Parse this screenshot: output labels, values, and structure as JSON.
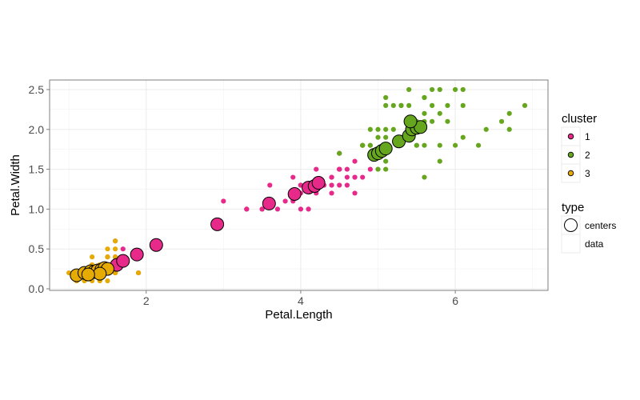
{
  "chart_data": {
    "type": "scatter",
    "xlabel": "Petal.Length",
    "ylabel": "Petal.Width",
    "xlim": [
      0.75,
      7.2
    ],
    "ylim": [
      -0.02,
      2.62
    ],
    "x_ticks": [
      2,
      4,
      6
    ],
    "y_ticks": [
      0.0,
      0.5,
      1.0,
      1.5,
      2.0,
      2.5
    ],
    "x_tick_labels": [
      "2",
      "4",
      "6"
    ],
    "y_tick_labels": [
      "0.0",
      "0.5",
      "1.0",
      "1.5",
      "2.0",
      "2.5"
    ],
    "grid": true,
    "legend": {
      "placement": "right",
      "cluster": {
        "title": "cluster",
        "entries": [
          "1",
          "2",
          "3"
        ]
      },
      "type": {
        "title": "type",
        "entries": [
          "centers",
          "data"
        ]
      }
    },
    "series": [
      {
        "name": "1",
        "color": "#e7298a",
        "data": [
          [
            4.7,
            1.4
          ],
          [
            4.5,
            1.5
          ],
          [
            4.0,
            1.3
          ],
          [
            4.6,
            1.5
          ],
          [
            4.5,
            1.3
          ],
          [
            4.7,
            1.6
          ],
          [
            3.3,
            1.0
          ],
          [
            4.6,
            1.3
          ],
          [
            3.9,
            1.4
          ],
          [
            3.5,
            1.0
          ],
          [
            4.2,
            1.5
          ],
          [
            4.0,
            1.0
          ],
          [
            4.7,
            1.4
          ],
          [
            3.6,
            1.3
          ],
          [
            4.4,
            1.4
          ],
          [
            4.5,
            1.5
          ],
          [
            4.1,
            1.0
          ],
          [
            4.5,
            1.5
          ],
          [
            3.9,
            1.1
          ],
          [
            4.0,
            1.3
          ],
          [
            4.7,
            1.2
          ],
          [
            4.3,
            1.3
          ],
          [
            4.4,
            1.4
          ],
          [
            4.8,
            1.4
          ],
          [
            3.5,
            1.0
          ],
          [
            3.8,
            1.1
          ],
          [
            3.7,
            1.0
          ],
          [
            3.9,
            1.2
          ],
          [
            4.5,
            1.5
          ],
          [
            4.4,
            1.3
          ],
          [
            4.1,
            1.3
          ],
          [
            4.0,
            1.3
          ],
          [
            4.4,
            1.2
          ],
          [
            4.6,
            1.4
          ],
          [
            4.0,
            1.2
          ],
          [
            3.3,
            1.0
          ],
          [
            4.2,
            1.3
          ],
          [
            4.2,
            1.2
          ],
          [
            4.2,
            1.3
          ],
          [
            4.3,
            1.3
          ],
          [
            3.0,
            1.1
          ],
          [
            4.1,
            1.3
          ],
          [
            4.5,
            1.7
          ],
          [
            1.7,
            0.4
          ],
          [
            1.5,
            0.4
          ],
          [
            1.7,
            0.5
          ],
          [
            1.9,
            0.4
          ],
          [
            1.6,
            0.6
          ],
          [
            1.9,
            0.2
          ],
          [
            1.6,
            0.4
          ],
          [
            4.8,
            1.8
          ],
          [
            4.9,
            1.5
          ]
        ],
        "centers": [
          [
            1.62,
            0.3
          ],
          [
            1.7,
            0.35
          ],
          [
            1.88,
            0.43
          ],
          [
            2.13,
            0.55
          ],
          [
            2.92,
            0.81
          ],
          [
            3.59,
            1.07
          ],
          [
            3.92,
            1.19
          ],
          [
            4.1,
            1.27
          ],
          [
            4.18,
            1.29
          ],
          [
            4.23,
            1.33
          ]
        ]
      },
      {
        "name": "2",
        "color": "#66a61e",
        "data": [
          [
            6.0,
            2.5
          ],
          [
            5.1,
            1.9
          ],
          [
            5.9,
            2.1
          ],
          [
            5.6,
            1.8
          ],
          [
            5.8,
            2.2
          ],
          [
            6.6,
            2.1
          ],
          [
            4.5,
            1.7
          ],
          [
            6.3,
            1.8
          ],
          [
            5.8,
            1.8
          ],
          [
            6.1,
            2.5
          ],
          [
            5.1,
            2.0
          ],
          [
            5.3,
            1.9
          ],
          [
            5.5,
            2.1
          ],
          [
            5.0,
            2.0
          ],
          [
            5.1,
            2.4
          ],
          [
            5.3,
            2.3
          ],
          [
            5.5,
            1.8
          ],
          [
            6.7,
            2.2
          ],
          [
            6.9,
            2.3
          ],
          [
            5.0,
            1.5
          ],
          [
            5.7,
            2.3
          ],
          [
            4.9,
            2.0
          ],
          [
            6.7,
            2.0
          ],
          [
            4.9,
            1.8
          ],
          [
            5.7,
            2.1
          ],
          [
            6.0,
            1.8
          ],
          [
            4.8,
            1.8
          ],
          [
            4.9,
            1.8
          ],
          [
            5.6,
            2.1
          ],
          [
            5.8,
            1.6
          ],
          [
            6.1,
            1.9
          ],
          [
            6.4,
            2.0
          ],
          [
            5.6,
            2.2
          ],
          [
            5.1,
            1.5
          ],
          [
            5.6,
            1.4
          ],
          [
            6.1,
            2.3
          ],
          [
            5.6,
            2.4
          ],
          [
            5.5,
            1.8
          ],
          [
            4.8,
            1.8
          ],
          [
            5.4,
            2.1
          ],
          [
            5.6,
            2.4
          ],
          [
            5.1,
            2.3
          ],
          [
            5.9,
            2.3
          ],
          [
            5.7,
            2.5
          ],
          [
            5.2,
            2.3
          ],
          [
            5.0,
            1.9
          ],
          [
            5.2,
            2.0
          ],
          [
            5.4,
            2.3
          ],
          [
            5.1,
            1.8
          ],
          [
            5.0,
            1.7
          ],
          [
            5.1,
            1.6
          ],
          [
            5.8,
            2.5
          ],
          [
            5.3,
            2.3
          ],
          [
            5.4,
            2.5
          ]
        ],
        "centers": [
          [
            4.95,
            1.68
          ],
          [
            5.0,
            1.7
          ],
          [
            5.05,
            1.73
          ],
          [
            5.1,
            1.76
          ],
          [
            5.27,
            1.85
          ],
          [
            5.4,
            1.92
          ],
          [
            5.44,
            2.0
          ],
          [
            5.5,
            2.02
          ],
          [
            5.55,
            2.03
          ],
          [
            5.42,
            2.1
          ]
        ]
      },
      {
        "name": "3",
        "color": "#e6ab02",
        "data": [
          [
            1.4,
            0.2
          ],
          [
            1.3,
            0.2
          ],
          [
            1.5,
            0.2
          ],
          [
            1.4,
            0.2
          ],
          [
            1.7,
            0.4
          ],
          [
            1.4,
            0.3
          ],
          [
            1.5,
            0.2
          ],
          [
            1.5,
            0.1
          ],
          [
            1.5,
            0.2
          ],
          [
            1.6,
            0.2
          ],
          [
            1.4,
            0.1
          ],
          [
            1.1,
            0.1
          ],
          [
            1.2,
            0.2
          ],
          [
            1.5,
            0.4
          ],
          [
            1.3,
            0.4
          ],
          [
            1.4,
            0.3
          ],
          [
            1.7,
            0.3
          ],
          [
            1.5,
            0.3
          ],
          [
            1.0,
            0.2
          ],
          [
            1.6,
            0.2
          ],
          [
            1.6,
            0.4
          ],
          [
            1.4,
            0.2
          ],
          [
            1.2,
            0.2
          ],
          [
            1.3,
            0.2
          ],
          [
            1.3,
            0.3
          ],
          [
            1.3,
            0.3
          ],
          [
            1.6,
            0.6
          ],
          [
            1.9,
            0.2
          ],
          [
            1.4,
            0.3
          ],
          [
            1.6,
            0.2
          ],
          [
            1.4,
            0.2
          ],
          [
            1.5,
            0.2
          ],
          [
            1.4,
            0.2
          ],
          [
            1.5,
            0.5
          ],
          [
            1.9,
            0.4
          ],
          [
            1.2,
            0.1
          ],
          [
            1.3,
            0.1
          ],
          [
            1.4,
            0.1
          ],
          [
            1.1,
            0.1
          ],
          [
            1.6,
            0.5
          ]
        ],
        "centers": [
          [
            1.1,
            0.17
          ],
          [
            1.2,
            0.2
          ],
          [
            1.28,
            0.22
          ],
          [
            1.32,
            0.21
          ],
          [
            1.37,
            0.23
          ],
          [
            1.42,
            0.24
          ],
          [
            1.46,
            0.26
          ],
          [
            1.5,
            0.25
          ],
          [
            1.4,
            0.19
          ],
          [
            1.25,
            0.18
          ]
        ]
      }
    ]
  }
}
